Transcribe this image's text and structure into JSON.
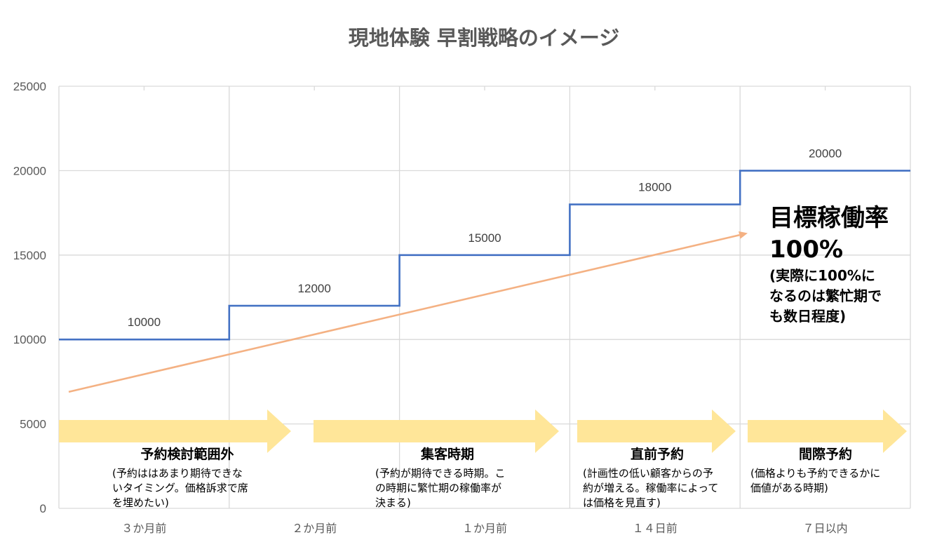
{
  "chart_data": {
    "type": "line",
    "title": "現地体験 早割戦略のイメージ",
    "categories": [
      "３か月前",
      "２か月前",
      "１か月前",
      "１４日前",
      "７日以内"
    ],
    "y_ticks": [
      "0",
      "5000",
      "10000",
      "15000",
      "20000",
      "25000"
    ],
    "ylim": [
      0,
      25000
    ],
    "grid": true,
    "series": [
      {
        "type": "step",
        "color": "#4472C4",
        "values": [
          10000,
          12000,
          15000,
          18000,
          20000
        ],
        "labels": [
          "10000",
          "12000",
          "15000",
          "18000",
          "20000"
        ]
      },
      {
        "type": "arrow",
        "color": "#F4B183",
        "start": 6900,
        "end": 16300
      }
    ],
    "annotations": [
      {
        "title": "予約検討範囲外",
        "desc": [
          "(予約ははあまり期待できな",
          "いタイミング。価格訴求で席",
          "を埋めたい)"
        ]
      },
      {
        "title": "集客時期",
        "desc": [
          "(予約が期待できる時期。こ",
          "の時期に繁忙期の稼働率が",
          "決まる)"
        ]
      },
      {
        "title": "直前予約",
        "desc": [
          "(計画性の低い顧客からの予",
          "約が増える。稼働率によって",
          "は価格を見直す)"
        ]
      },
      {
        "title": "間際予約",
        "desc": [
          "(価格よりも予約できるかに",
          "価値がある時期)"
        ]
      }
    ],
    "target": {
      "title": [
        "目標稼働率",
        "100%"
      ],
      "desc": [
        "(実際に100%に",
        "なるのは繁忙期で",
        "も数日程度)"
      ]
    },
    "colors": {
      "step_line": "#4472C4",
      "trend_arrow": "#F4B183",
      "phase_arrow": "#FFE699",
      "grid": "#D9D9D9"
    }
  }
}
